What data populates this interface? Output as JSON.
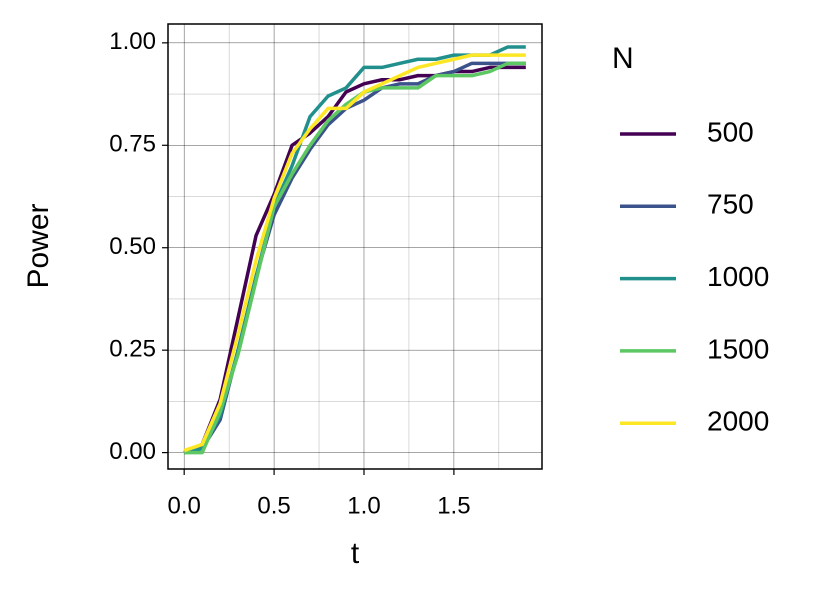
{
  "chart_data": {
    "type": "line",
    "x_label": "t",
    "y_label": "Power",
    "legend_title": "N",
    "legend_position": "right",
    "x": [
      0,
      0.1,
      0.2,
      0.3,
      0.4,
      0.5,
      0.6,
      0.7,
      0.8,
      0.9,
      1.0,
      1.1,
      1.2,
      1.3,
      1.4,
      1.5,
      1.6,
      1.7,
      1.8,
      1.9
    ],
    "series": [
      {
        "name": "500",
        "color": "#440154",
        "values": [
          0,
          0.02,
          0.13,
          0.33,
          0.53,
          0.63,
          0.75,
          0.78,
          0.82,
          0.88,
          0.9,
          0.91,
          0.91,
          0.92,
          0.92,
          0.93,
          0.93,
          0.94,
          0.94,
          0.94
        ]
      },
      {
        "name": "750",
        "color": "#3b528b",
        "values": [
          0,
          0.01,
          0.08,
          0.25,
          0.43,
          0.58,
          0.67,
          0.74,
          0.8,
          0.84,
          0.86,
          0.89,
          0.9,
          0.9,
          0.92,
          0.93,
          0.95,
          0.95,
          0.95,
          0.95
        ]
      },
      {
        "name": "1000",
        "color": "#21908d",
        "values": [
          0,
          0.01,
          0.09,
          0.25,
          0.43,
          0.6,
          0.7,
          0.82,
          0.87,
          0.89,
          0.94,
          0.94,
          0.95,
          0.96,
          0.96,
          0.97,
          0.97,
          0.97,
          0.99,
          0.99
        ]
      },
      {
        "name": "1500",
        "color": "#5dc863",
        "values": [
          0,
          0,
          0.1,
          0.24,
          0.42,
          0.6,
          0.68,
          0.75,
          0.81,
          0.85,
          0.88,
          0.89,
          0.89,
          0.89,
          0.92,
          0.92,
          0.92,
          0.93,
          0.95,
          0.95
        ]
      },
      {
        "name": "2000",
        "color": "#fde725",
        "values": [
          0.005,
          0.02,
          0.12,
          0.29,
          0.47,
          0.62,
          0.73,
          0.79,
          0.84,
          0.84,
          0.88,
          0.9,
          0.92,
          0.94,
          0.95,
          0.96,
          0.97,
          0.97,
          0.97,
          0.97
        ]
      }
    ],
    "xlim": [
      -0.09,
      1.99
    ],
    "ylim": [
      -0.04,
      1.046
    ],
    "xticks": [
      {
        "value": 0,
        "label": "0.0"
      },
      0.5,
      {
        "value": 1,
        "label": "1.0"
      },
      1.5
    ],
    "yticks": [
      {
        "value": 0,
        "label": "0.00"
      },
      0.25,
      {
        "value": 0.5,
        "label": "0.50"
      },
      0.75,
      {
        "value": 1,
        "label": "1.00"
      }
    ],
    "x_minor_grid": [
      0.25,
      0.75,
      1.25,
      1.75
    ],
    "y_minor_grid": [
      0.125,
      0.375,
      0.625,
      0.875
    ],
    "grid": true
  }
}
